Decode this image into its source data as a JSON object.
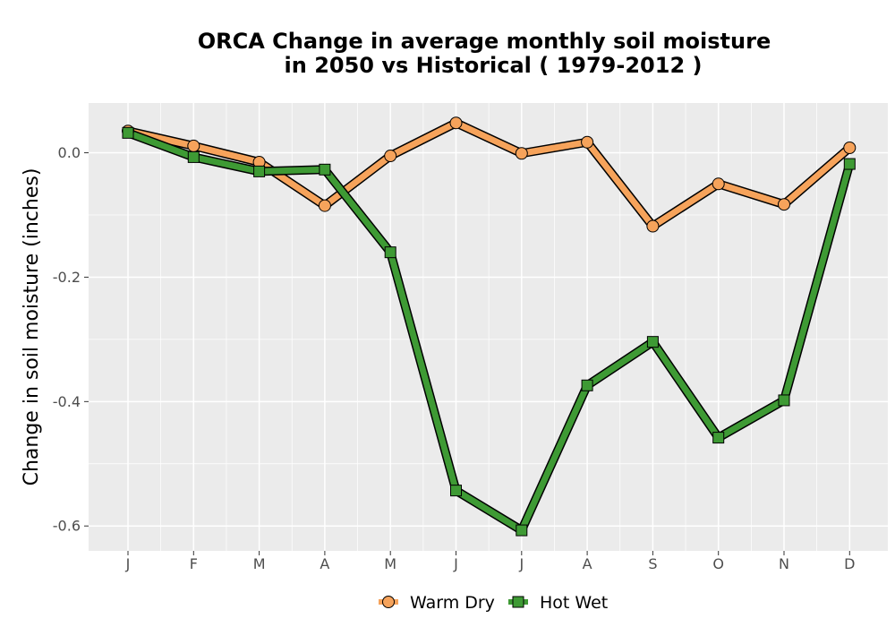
{
  "chart_data": {
    "type": "line",
    "title": "ORCA  Change in average monthly soil moisture",
    "subtitle": "in 2050 vs Historical ( 1979-2012 )",
    "xlabel": "",
    "ylabel": "Change in soil moisture (inches)",
    "categories": [
      "J",
      "F",
      "M",
      "A",
      "M",
      "J",
      "J",
      "A",
      "S",
      "O",
      "N",
      "D"
    ],
    "yticks": [
      "0.0",
      "-0.2",
      "-0.4",
      "-0.6"
    ],
    "ylim": [
      -0.64,
      0.08
    ],
    "grid": true,
    "legend_position": "bottom",
    "series": [
      {
        "name": "Warm Dry",
        "color": "#F6A35B",
        "marker": "circle",
        "values": [
          0.035,
          0.011,
          -0.015,
          -0.085,
          -0.005,
          0.048,
          -0.001,
          0.017,
          -0.118,
          -0.05,
          -0.083,
          0.008
        ]
      },
      {
        "name": "Hot Wet",
        "color": "#3E9A34",
        "marker": "square",
        "values": [
          0.032,
          -0.007,
          -0.03,
          -0.027,
          -0.16,
          -0.543,
          -0.607,
          -0.374,
          -0.304,
          -0.458,
          -0.398,
          -0.018
        ]
      }
    ]
  }
}
